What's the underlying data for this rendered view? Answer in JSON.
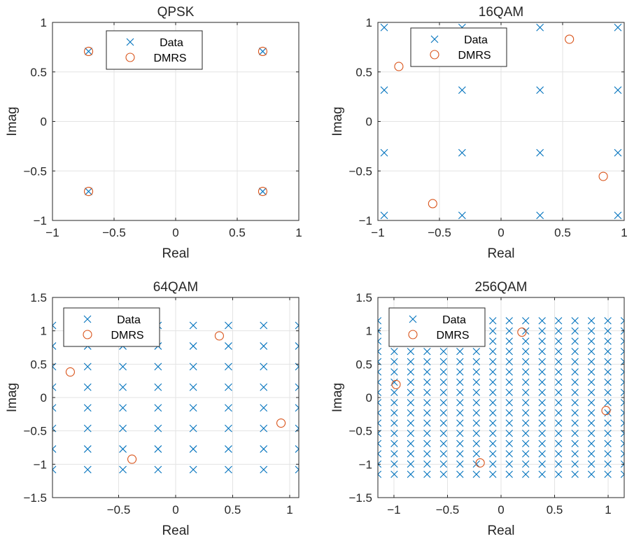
{
  "colors": {
    "data": "#0072BD",
    "dmrs": "#D95319"
  },
  "chart_data": [
    {
      "type": "scatter",
      "title": "QPSK",
      "xlabel": "Real",
      "ylabel": "Imag",
      "xlim": [
        -1,
        1
      ],
      "ylim": [
        -1,
        1
      ],
      "xticks": [
        -1,
        -0.5,
        0,
        0.5,
        1
      ],
      "yticks": [
        -1,
        -0.5,
        0,
        0.5,
        1
      ],
      "grid": true,
      "legend": {
        "position": "top",
        "entries": [
          "Data",
          "DMRS"
        ]
      },
      "series": [
        {
          "name": "Data",
          "marker": "x",
          "levels": [
            -0.7071,
            0.7071
          ]
        },
        {
          "name": "DMRS",
          "marker": "o",
          "points": [
            [
              -0.7071,
              0.7071
            ],
            [
              0.7071,
              0.7071
            ],
            [
              -0.7071,
              -0.7071
            ],
            [
              0.7071,
              -0.7071
            ]
          ]
        }
      ]
    },
    {
      "type": "scatter",
      "title": "16QAM",
      "xlabel": "Real",
      "ylabel": "Imag",
      "xlim": [
        -1,
        1
      ],
      "ylim": [
        -1,
        1
      ],
      "xticks": [
        -1,
        -0.5,
        0,
        0.5,
        1
      ],
      "yticks": [
        -1,
        -0.5,
        0,
        0.5,
        1
      ],
      "grid": true,
      "legend": {
        "position": "top",
        "entries": [
          "Data",
          "DMRS"
        ]
      },
      "series": [
        {
          "name": "Data",
          "marker": "x",
          "levels": [
            -0.9487,
            -0.3162,
            0.3162,
            0.9487
          ]
        },
        {
          "name": "DMRS",
          "marker": "o",
          "points": [
            [
              -0.83,
              0.555
            ],
            [
              0.555,
              0.83
            ],
            [
              -0.555,
              -0.83
            ],
            [
              0.83,
              -0.555
            ]
          ]
        }
      ]
    },
    {
      "type": "scatter",
      "title": "64QAM",
      "xlabel": "Real",
      "ylabel": "Imag",
      "xlim": [
        -1.08,
        1.08
      ],
      "ylim": [
        -1.5,
        1.5
      ],
      "xticks": [
        -0.5,
        0,
        0.5,
        1
      ],
      "yticks": [
        -1.5,
        -1,
        -0.5,
        0,
        0.5,
        1,
        1.5
      ],
      "grid": true,
      "legend": {
        "position": "top-left",
        "entries": [
          "Data",
          "DMRS"
        ]
      },
      "series": [
        {
          "name": "Data",
          "marker": "x",
          "levels": [
            -1.0801,
            -0.7715,
            -0.4629,
            -0.1543,
            0.1543,
            0.4629,
            0.7715,
            1.0801
          ]
        },
        {
          "name": "DMRS",
          "marker": "o",
          "points": [
            [
              -0.924,
              0.383
            ],
            [
              0.383,
              0.924
            ],
            [
              -0.383,
              -0.924
            ],
            [
              0.924,
              -0.383
            ]
          ]
        }
      ]
    },
    {
      "type": "scatter",
      "title": "256QAM",
      "xlabel": "Real",
      "ylabel": "Imag",
      "xlim": [
        -1.15,
        1.15
      ],
      "ylim": [
        -1.5,
        1.5
      ],
      "xticks": [
        -1,
        -0.5,
        0,
        0.5,
        1
      ],
      "yticks": [
        -1.5,
        -1,
        -0.5,
        0,
        0.5,
        1,
        1.5
      ],
      "grid": true,
      "legend": {
        "position": "top-left",
        "entries": [
          "Data",
          "DMRS"
        ]
      },
      "series": [
        {
          "name": "Data",
          "marker": "x",
          "levels": [
            -1.1504,
            -0.9971,
            -0.8437,
            -0.6903,
            -0.5369,
            -0.3835,
            -0.2301,
            -0.0767,
            0.0767,
            0.2301,
            0.3835,
            0.5369,
            0.6903,
            0.8437,
            0.9971,
            1.1504
          ]
        },
        {
          "name": "DMRS",
          "marker": "o",
          "points": [
            [
              -0.98,
              0.195
            ],
            [
              0.195,
              0.98
            ],
            [
              -0.195,
              -0.98
            ],
            [
              0.98,
              -0.195
            ]
          ]
        }
      ]
    }
  ]
}
